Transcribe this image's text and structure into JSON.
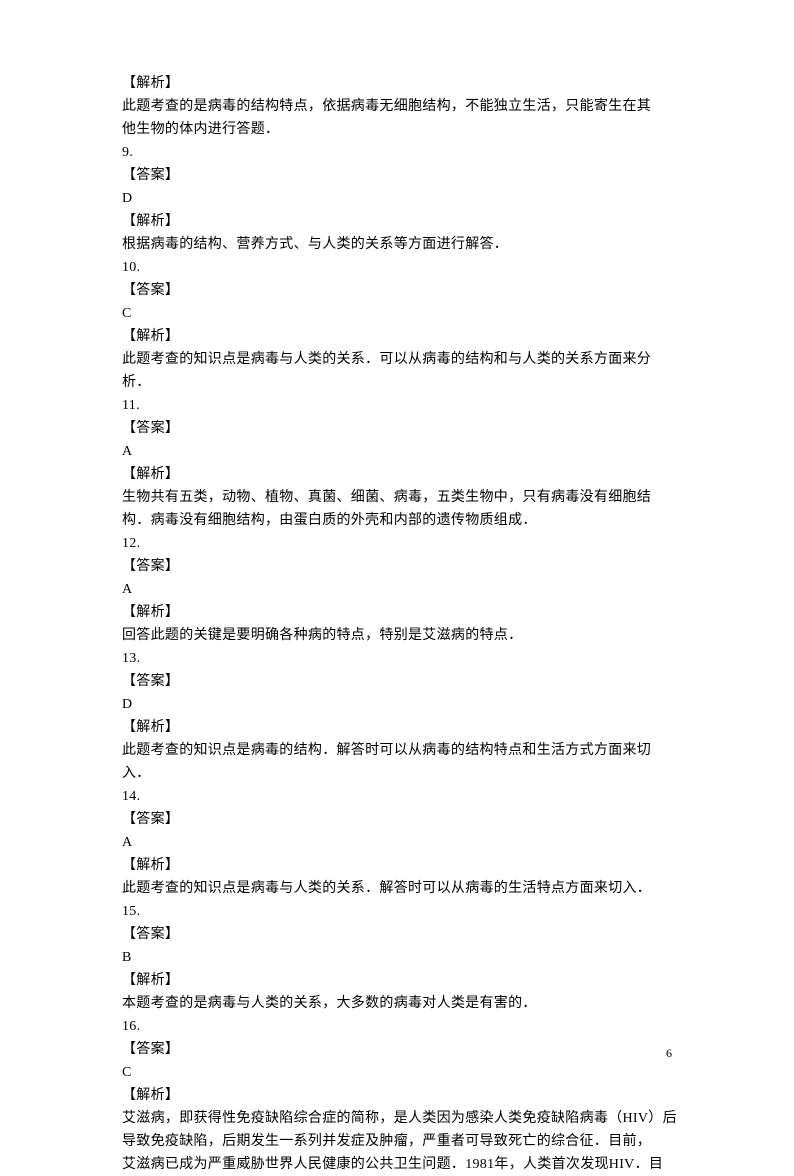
{
  "page": {
    "number": "6",
    "fontSize": 14,
    "lineHeight": 23,
    "textColor": "#000000",
    "backgroundColor": "#ffffff",
    "lines": [
      "【解析】",
      "此题考查的是病毒的结构特点，依据病毒无细胞结构，不能独立生活，只能寄生在其",
      "他生物的体内进行答题．",
      "9.",
      "【答案】",
      "D",
      "【解析】",
      "根据病毒的结构、营养方式、与人类的关系等方面进行解答．",
      "10.",
      "【答案】",
      "C",
      "【解析】",
      "此题考查的知识点是病毒与人类的关系．可以从病毒的结构和与人类的关系方面来分",
      "析．",
      "11.",
      "【答案】",
      "A",
      "【解析】",
      "生物共有五类，动物、植物、真菌、细菌、病毒，五类生物中，只有病毒没有细胞结",
      "构．病毒没有细胞结构，由蛋白质的外壳和内部的遗传物质组成．",
      "12.",
      "【答案】",
      "A",
      "【解析】",
      "回答此题的关键是要明确各种病的特点，特别是艾滋病的特点．",
      "13.",
      "【答案】",
      "D",
      "【解析】",
      "此题考查的知识点是病毒的结构．解答时可以从病毒的结构特点和生活方式方面来切",
      "入．",
      "14.",
      "【答案】",
      "A",
      "【解析】",
      "此题考查的知识点是病毒与人类的关系．解答时可以从病毒的生活特点方面来切入．",
      "15.",
      "【答案】",
      "B",
      "【解析】",
      "本题考查的是病毒与人类的关系，大多数的病毒对人类是有害的．",
      "16.",
      "【答案】",
      "C",
      "【解析】",
      "艾滋病，即获得性免疫缺陷综合症的简称，是人类因为感染人类免疫缺陷病毒（HIV）后",
      "导致免疫缺陷，后期发生一系列并发症及肿瘤，严重者可导致死亡的综合征．目前，",
      "艾滋病已成为严重威胁世界人民健康的公共卫生问题．1981年，人类首次发现HIV．目"
    ]
  }
}
